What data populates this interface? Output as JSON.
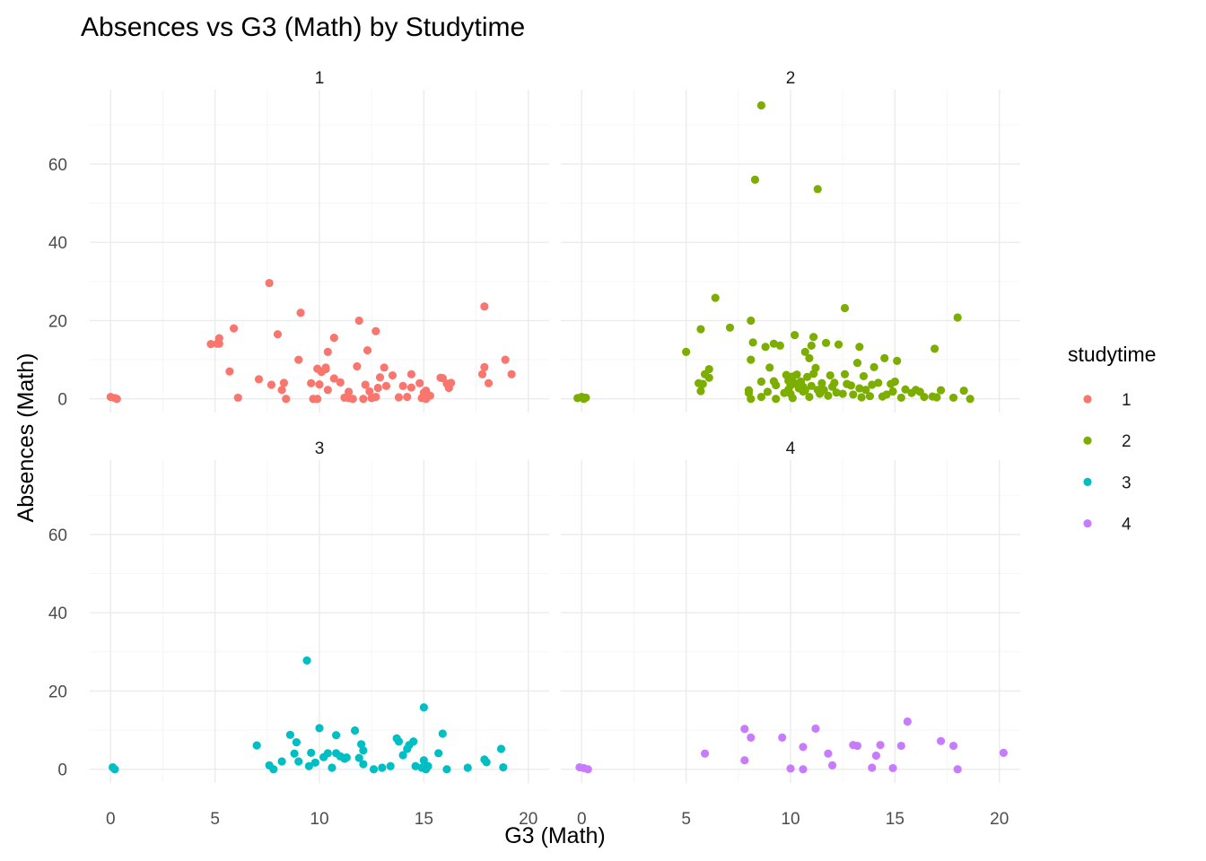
{
  "chart_data": {
    "type": "scatter",
    "title": "Absences vs G3 (Math) by Studytime",
    "xlabel": "G3 (Math)",
    "ylabel": "Absences (Math)",
    "xlim": [
      -1,
      21
    ],
    "ylim": [
      -3.5,
      79
    ],
    "x_ticks": [
      0,
      5,
      10,
      15,
      20
    ],
    "y_ticks": [
      0,
      20,
      40,
      60
    ],
    "facet_layout": "2x2",
    "legend": {
      "title": "studytime",
      "position": "right"
    },
    "series": [
      {
        "name": "1",
        "color": "#F8766D",
        "points": [
          [
            0,
            0.5
          ],
          [
            0.2,
            0.2
          ],
          [
            0.3,
            0
          ],
          [
            4.8,
            14
          ],
          [
            5.1,
            14.1
          ],
          [
            5.2,
            15.5
          ],
          [
            5.2,
            14.1
          ],
          [
            5.7,
            7
          ],
          [
            5.9,
            18
          ],
          [
            6.1,
            0.3
          ],
          [
            7.1,
            5
          ],
          [
            7.6,
            29.6
          ],
          [
            7.7,
            3.6
          ],
          [
            8,
            16.5
          ],
          [
            8.2,
            2.3
          ],
          [
            8.3,
            4.1
          ],
          [
            8.4,
            0
          ],
          [
            9,
            10
          ],
          [
            9.1,
            22
          ],
          [
            9.6,
            4
          ],
          [
            9.7,
            0
          ],
          [
            9.9,
            7.7
          ],
          [
            9.9,
            0
          ],
          [
            10,
            3.7
          ],
          [
            10.1,
            6.9
          ],
          [
            10.3,
            8
          ],
          [
            10.3,
            7.6
          ],
          [
            10.4,
            12
          ],
          [
            10.4,
            2.3
          ],
          [
            10.7,
            15.6
          ],
          [
            10.7,
            5.2
          ],
          [
            11,
            4.2
          ],
          [
            11.2,
            0.3
          ],
          [
            11.4,
            1.8
          ],
          [
            11.4,
            0.2
          ],
          [
            11.6,
            0
          ],
          [
            11.8,
            8.3
          ],
          [
            11.9,
            20
          ],
          [
            12.1,
            0
          ],
          [
            12.2,
            3.6
          ],
          [
            12.3,
            12.4
          ],
          [
            12.4,
            1.9
          ],
          [
            12.5,
            0.2
          ],
          [
            12.7,
            17.3
          ],
          [
            12.7,
            0.5
          ],
          [
            12.8,
            2.8
          ],
          [
            12.9,
            5.5
          ],
          [
            13.1,
            8
          ],
          [
            13.2,
            3.3
          ],
          [
            13.5,
            6
          ],
          [
            13.8,
            0.4
          ],
          [
            14,
            3.3
          ],
          [
            14.2,
            0.5
          ],
          [
            14.4,
            6.3
          ],
          [
            14.4,
            2.9
          ],
          [
            14.8,
            4
          ],
          [
            14.9,
            0.2
          ],
          [
            15,
            1.6
          ],
          [
            15.1,
            0
          ],
          [
            15.1,
            2.1
          ],
          [
            15.3,
            0.8
          ],
          [
            15.8,
            5.4
          ],
          [
            15.9,
            5.3
          ],
          [
            16.1,
            3.9
          ],
          [
            16.2,
            2.8
          ],
          [
            16.3,
            4.1
          ],
          [
            17.8,
            6.3
          ],
          [
            17.9,
            8.1
          ],
          [
            17.9,
            23.6
          ],
          [
            18.1,
            4
          ],
          [
            18.9,
            10
          ],
          [
            19.2,
            6.3
          ]
        ]
      },
      {
        "name": "2",
        "color": "#7CAE00",
        "points": [
          [
            -0.2,
            0.2
          ],
          [
            0,
            0.5
          ],
          [
            0.1,
            0
          ],
          [
            0.2,
            0.3
          ],
          [
            5,
            12
          ],
          [
            5.6,
            4
          ],
          [
            5.7,
            17.8
          ],
          [
            5.7,
            2
          ],
          [
            5.8,
            3.8
          ],
          [
            5.9,
            6.3
          ],
          [
            6.1,
            5.4
          ],
          [
            6.1,
            7.6
          ],
          [
            6.4,
            25.8
          ],
          [
            7.1,
            18.2
          ],
          [
            8,
            2.2
          ],
          [
            8,
            1.5
          ],
          [
            8.1,
            20
          ],
          [
            8.1,
            10
          ],
          [
            8.1,
            0
          ],
          [
            8.2,
            14.4
          ],
          [
            8.3,
            56
          ],
          [
            8.6,
            75
          ],
          [
            8.6,
            4.4
          ],
          [
            8.6,
            0.5
          ],
          [
            8.8,
            13.3
          ],
          [
            8.9,
            1.8
          ],
          [
            9,
            8
          ],
          [
            9.2,
            14.1
          ],
          [
            9.2,
            4.5
          ],
          [
            9.3,
            0
          ],
          [
            9.3,
            3.5
          ],
          [
            9.5,
            13.6
          ],
          [
            9.7,
            1.5
          ],
          [
            9.8,
            6.1
          ],
          [
            9.9,
            2.4
          ],
          [
            9.9,
            4.6
          ],
          [
            10,
            1.3
          ],
          [
            10,
            3.4
          ],
          [
            10.1,
            0.2
          ],
          [
            10.1,
            5.7
          ],
          [
            10.2,
            4
          ],
          [
            10.2,
            16.3
          ],
          [
            10.3,
            3.8
          ],
          [
            10.3,
            6.2
          ],
          [
            10.4,
            2.7
          ],
          [
            10.5,
            4.4
          ],
          [
            10.6,
            1.9
          ],
          [
            10.6,
            3.1
          ],
          [
            10.7,
            2.2
          ],
          [
            10.7,
            12
          ],
          [
            10.8,
            5.6
          ],
          [
            10.9,
            10.4
          ],
          [
            10.9,
            0.5
          ],
          [
            11,
            13.6
          ],
          [
            11,
            3.3
          ],
          [
            11.1,
            15.8
          ],
          [
            11.1,
            6.4
          ],
          [
            11.2,
            7.9
          ],
          [
            11.3,
            53.6
          ],
          [
            11.3,
            2.3
          ],
          [
            11.4,
            1.3
          ],
          [
            11.5,
            4
          ],
          [
            11.6,
            2.3
          ],
          [
            11.7,
            14.3
          ],
          [
            11.8,
            0.8
          ],
          [
            11.9,
            6
          ],
          [
            12,
            3.1
          ],
          [
            12.1,
            4.1
          ],
          [
            12.2,
            1.6
          ],
          [
            12.3,
            13.9
          ],
          [
            12.5,
            1.3
          ],
          [
            12.6,
            6.3
          ],
          [
            12.6,
            23.2
          ],
          [
            12.7,
            3.8
          ],
          [
            12.9,
            3.4
          ],
          [
            13,
            1.1
          ],
          [
            13.2,
            9.2
          ],
          [
            13.3,
            13.3
          ],
          [
            13.3,
            2.7
          ],
          [
            13.4,
            0.4
          ],
          [
            13.5,
            5.8
          ],
          [
            13.6,
            2.3
          ],
          [
            13.8,
            0.7
          ],
          [
            13.9,
            3.6
          ],
          [
            14,
            8.1
          ],
          [
            14.2,
            4.1
          ],
          [
            14.4,
            0.6
          ],
          [
            14.5,
            10.4
          ],
          [
            14.6,
            1.1
          ],
          [
            14.8,
            3.8
          ],
          [
            14.9,
            1.9
          ],
          [
            15,
            4.4
          ],
          [
            15.1,
            9.7
          ],
          [
            15.3,
            0.3
          ],
          [
            15.5,
            2.4
          ],
          [
            15.8,
            1.5
          ],
          [
            16,
            2.3
          ],
          [
            16.2,
            1.8
          ],
          [
            16.4,
            0.5
          ],
          [
            16.8,
            0.6
          ],
          [
            16.9,
            12.8
          ],
          [
            17,
            0.4
          ],
          [
            17.2,
            2.2
          ],
          [
            17.8,
            0.3
          ],
          [
            18,
            20.8
          ],
          [
            18.3,
            2.1
          ],
          [
            18.6,
            0
          ]
        ]
      },
      {
        "name": "3",
        "color": "#00BFC4",
        "points": [
          [
            0.1,
            0.5
          ],
          [
            0.2,
            0
          ],
          [
            7,
            6.1
          ],
          [
            7.6,
            1
          ],
          [
            7.8,
            0
          ],
          [
            8.2,
            2
          ],
          [
            8.6,
            8.8
          ],
          [
            8.8,
            4
          ],
          [
            8.9,
            6.9
          ],
          [
            9,
            2
          ],
          [
            9.4,
            27.8
          ],
          [
            9.5,
            0.8
          ],
          [
            9.6,
            4.2
          ],
          [
            9.8,
            1.7
          ],
          [
            10,
            10.5
          ],
          [
            10.2,
            3.1
          ],
          [
            10.4,
            4.1
          ],
          [
            10.6,
            0.4
          ],
          [
            10.8,
            4.1
          ],
          [
            10.8,
            8.7
          ],
          [
            11,
            3.3
          ],
          [
            11.2,
            2.7
          ],
          [
            11.3,
            3
          ],
          [
            11.7,
            9.9
          ],
          [
            11.9,
            2.9
          ],
          [
            12,
            6.4
          ],
          [
            12.1,
            4.8
          ],
          [
            12.1,
            1.3
          ],
          [
            12.6,
            0
          ],
          [
            13,
            0.4
          ],
          [
            13.4,
            0.8
          ],
          [
            13.7,
            7.9
          ],
          [
            13.8,
            7.1
          ],
          [
            14,
            3.6
          ],
          [
            14.2,
            5.2
          ],
          [
            14.3,
            6.2
          ],
          [
            14.5,
            7.1
          ],
          [
            14.6,
            0.8
          ],
          [
            14.9,
            0.4
          ],
          [
            15,
            2.3
          ],
          [
            15,
            15.8
          ],
          [
            15.1,
            0
          ],
          [
            15.2,
            0.8
          ],
          [
            15.7,
            4.1
          ],
          [
            15.9,
            9.1
          ],
          [
            16.1,
            0
          ],
          [
            17.1,
            0.4
          ],
          [
            17.9,
            2.5
          ],
          [
            18,
            1.8
          ],
          [
            18.7,
            5.2
          ],
          [
            18.8,
            0.5
          ]
        ]
      },
      {
        "name": "4",
        "color": "#C77CFF",
        "points": [
          [
            -0.1,
            0.5
          ],
          [
            0.1,
            0.3
          ],
          [
            0.3,
            0
          ],
          [
            5.9,
            4
          ],
          [
            7.8,
            10.3
          ],
          [
            7.8,
            2.3
          ],
          [
            8.1,
            8.1
          ],
          [
            9.6,
            8.1
          ],
          [
            10,
            0.2
          ],
          [
            10.6,
            5.7
          ],
          [
            10.6,
            0
          ],
          [
            11.2,
            10.4
          ],
          [
            11.8,
            4
          ],
          [
            12,
            1
          ],
          [
            13,
            6.2
          ],
          [
            13.2,
            6
          ],
          [
            13.9,
            0.4
          ],
          [
            14.1,
            3.5
          ],
          [
            14.3,
            6.2
          ],
          [
            14.9,
            0.3
          ],
          [
            15.3,
            6
          ],
          [
            15.6,
            12.2
          ],
          [
            17.2,
            7.2
          ],
          [
            17.8,
            6
          ],
          [
            18,
            0
          ],
          [
            20.2,
            4.2
          ]
        ]
      }
    ]
  }
}
